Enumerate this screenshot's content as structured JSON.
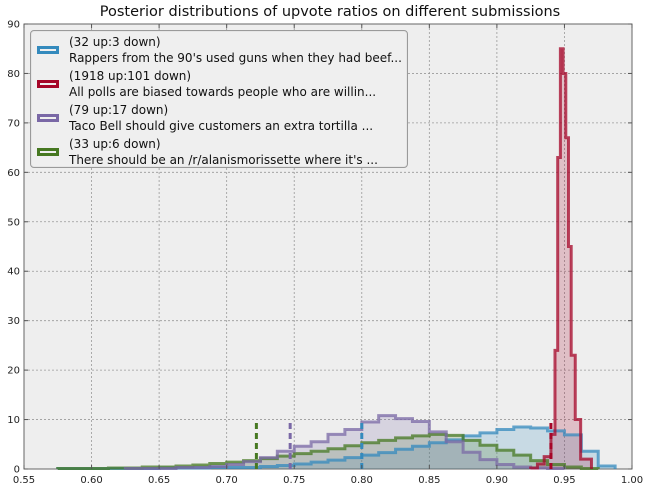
{
  "chart_data": {
    "type": "histogram",
    "title": "Posterior distributions of upvote ratios on different submissions",
    "xlabel": "",
    "ylabel": "",
    "xlim": [
      0.55,
      1.0
    ],
    "ylim": [
      0,
      90
    ],
    "xticks": [
      "0.55",
      "0.60",
      "0.65",
      "0.70",
      "0.75",
      "0.80",
      "0.85",
      "0.90",
      "0.95",
      "1.00"
    ],
    "yticks": [
      "0",
      "10",
      "20",
      "30",
      "40",
      "50",
      "60",
      "70",
      "80",
      "90"
    ],
    "grid": true,
    "legend_position": "upper-left",
    "series": [
      {
        "name": "(32 up:3 down)\nRappers from the 90's used guns when they had beef...",
        "color": "#348abd",
        "mean": 0.8,
        "bin_edges": [
          0.575,
          0.6125,
          0.65,
          0.6875,
          0.725,
          0.7375,
          0.75,
          0.7625,
          0.775,
          0.7875,
          0.8,
          0.8125,
          0.825,
          0.8375,
          0.85,
          0.8625,
          0.875,
          0.8875,
          0.9,
          0.9125,
          0.925,
          0.9375,
          0.95,
          0.9625,
          0.975,
          0.9875
        ],
        "values": [
          0.1,
          0.1,
          0.2,
          0.3,
          0.5,
          0.7,
          1.0,
          1.4,
          1.8,
          2.3,
          2.8,
          3.3,
          4.0,
          4.6,
          5.3,
          5.9,
          6.7,
          7.3,
          8.0,
          8.5,
          8.3,
          7.7,
          6.9,
          3.6,
          0.6
        ]
      },
      {
        "name": "(1918 up:101 down)\nAll polls are biased towards people who are willin...",
        "color": "#a60628",
        "mean": 0.94,
        "bin_edges": [
          0.925,
          0.93,
          0.935,
          0.94,
          0.943,
          0.945,
          0.947,
          0.949,
          0.951,
          0.953,
          0.955,
          0.958,
          0.962,
          0.97
        ],
        "values": [
          0.2,
          1.0,
          2.5,
          7.0,
          24.0,
          63.0,
          85.0,
          80.0,
          67.0,
          45.0,
          23.0,
          10.0,
          2.0
        ]
      },
      {
        "name": "(79 up:17 down)\nTaco Bell should give customers an extra tortilla ...",
        "color": "#7a68a6",
        "mean": 0.747,
        "bin_edges": [
          0.625,
          0.6625,
          0.6875,
          0.7,
          0.7125,
          0.725,
          0.7375,
          0.75,
          0.7625,
          0.775,
          0.7875,
          0.8,
          0.8125,
          0.825,
          0.8375,
          0.85,
          0.8625,
          0.875,
          0.8875,
          0.9,
          0.9125,
          0.925,
          0.9375,
          0.95
        ],
        "values": [
          0.1,
          0.3,
          0.5,
          0.9,
          1.5,
          2.3,
          3.6,
          4.6,
          5.5,
          7.0,
          8.0,
          9.5,
          10.8,
          10.2,
          9.6,
          7.5,
          5.5,
          3.4,
          1.9,
          0.9,
          0.4,
          0.2,
          0.1
        ]
      },
      {
        "name": "(33 up:6 down)\nThere should be an /r/alanismorissette where it's ...",
        "color": "#467821",
        "mean": 0.722,
        "bin_edges": [
          0.575,
          0.6125,
          0.6375,
          0.6625,
          0.675,
          0.6875,
          0.7,
          0.7125,
          0.725,
          0.7375,
          0.75,
          0.7625,
          0.775,
          0.7875,
          0.8,
          0.8125,
          0.825,
          0.8375,
          0.85,
          0.8625,
          0.875,
          0.8875,
          0.9,
          0.9125,
          0.925,
          0.9375,
          0.95,
          0.9625,
          0.975
        ],
        "values": [
          0.1,
          0.2,
          0.4,
          0.6,
          0.8,
          1.1,
          1.4,
          1.7,
          2.1,
          2.6,
          3.1,
          3.6,
          4.1,
          4.7,
          5.3,
          5.8,
          6.3,
          6.7,
          7.0,
          6.8,
          5.8,
          4.8,
          3.8,
          2.8,
          1.7,
          0.9,
          0.4,
          0.1
        ]
      }
    ],
    "mean_marker_height": 10
  }
}
